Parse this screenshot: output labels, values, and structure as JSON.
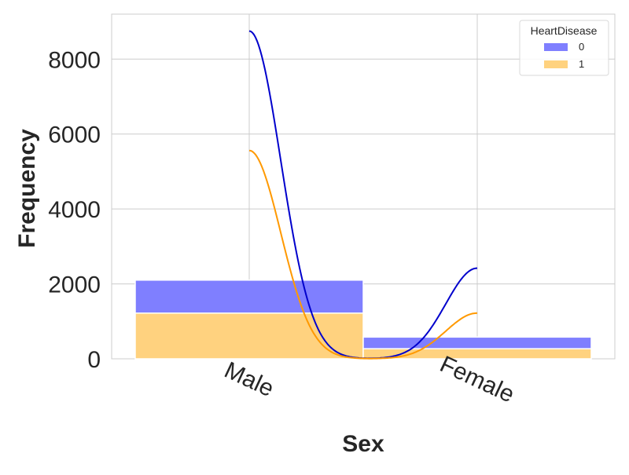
{
  "chart_data": {
    "type": "bar",
    "stacked": true,
    "title": "",
    "xlabel": "Sex",
    "ylabel": "Frequency",
    "categories": [
      "Male",
      "Female"
    ],
    "ylim": [
      0,
      9200
    ],
    "yticks": [
      0,
      2000,
      4000,
      6000,
      8000
    ],
    "ytick_labels": [
      "0",
      "2000",
      "4000",
      "6000",
      "8000"
    ],
    "grid": true,
    "legend": {
      "title": "HeartDisease",
      "placement": "top-right"
    },
    "series": [
      {
        "name": "0",
        "color": "#7f7fff",
        "line_color": "#0000cc",
        "values": [
          880,
          310
        ],
        "kde_peaks": [
          8750,
          2420
        ]
      },
      {
        "name": "1",
        "color": "#ffd27f",
        "line_color": "#ff9900",
        "values": [
          1220,
          270
        ],
        "kde_peaks": [
          5560,
          1220
        ]
      }
    ]
  }
}
